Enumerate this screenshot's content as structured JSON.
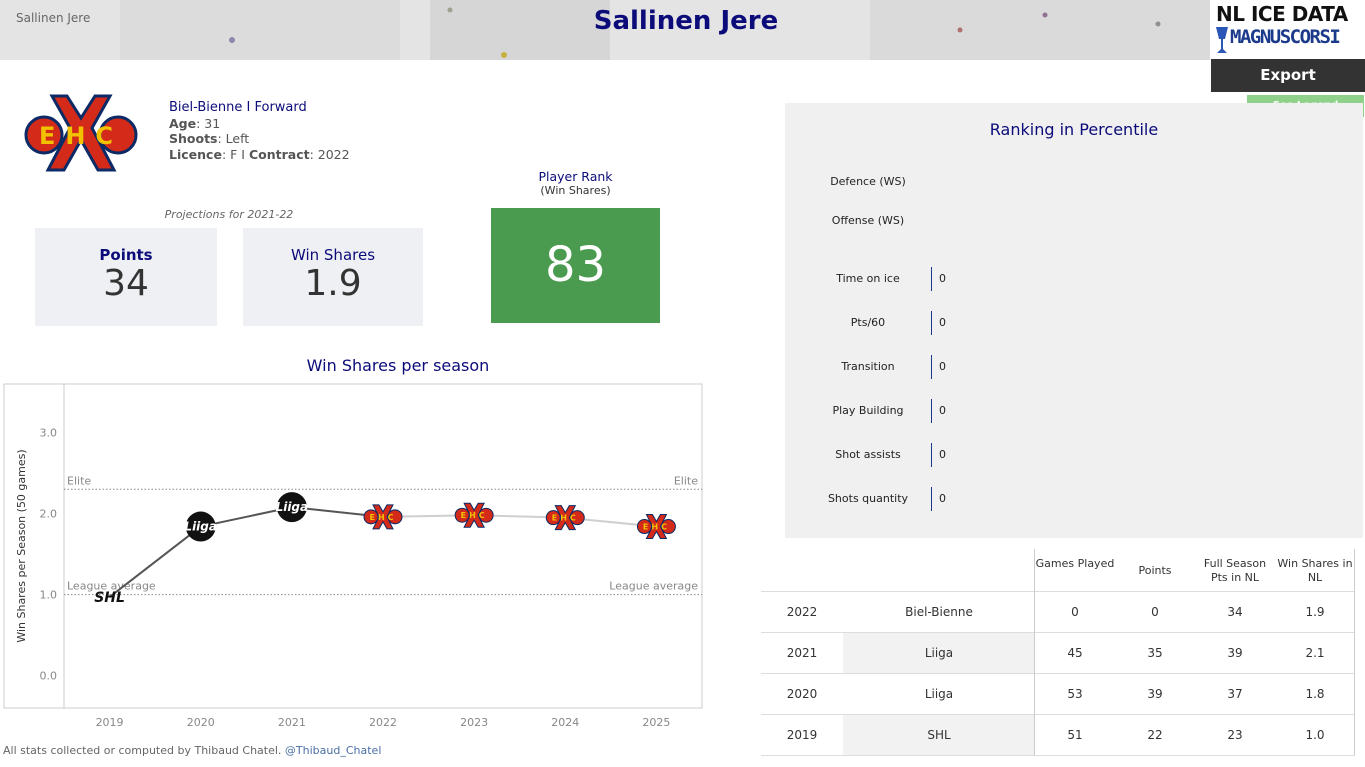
{
  "header": {
    "breadcrumb": "Sallinen Jere",
    "title": "Sallinen Jere",
    "brand_line1": "NL ICE DATA",
    "brand_line2": "MAGNUSCORSI",
    "export_label": "Export",
    "legend_label": "See Legend"
  },
  "player": {
    "team_position": "Biel-Bienne  I  Forward",
    "age_label": "Age",
    "age": ": 31",
    "shoots_label": "Shoots",
    "shoots": ": Left",
    "licence_label": "Licence",
    "licence": ": F I ",
    "contract_label": "Contract",
    "contract": ": 2022",
    "logo_text": "EHC"
  },
  "projections": {
    "title": "Projections for 2021-22",
    "points_label": "Points",
    "points_value": "34",
    "ws_label": "Win Shares",
    "ws_value": "1.9"
  },
  "rank": {
    "title": "Player Rank",
    "subtitle": "(Win Shares)",
    "value": "83",
    "color": "#4a9a4f"
  },
  "ws_chart_title": "Win Shares per season",
  "chart_data": {
    "type": "line",
    "title": "Win Shares per season",
    "ylabel": "Win Shares per Season (50 games)",
    "xlabel": "",
    "x": [
      "2019",
      "2020",
      "2021",
      "2022",
      "2023",
      "2024",
      "2025"
    ],
    "series": [
      {
        "values": [
          0.97,
          1.84,
          2.08,
          1.96,
          1.98,
          1.95,
          1.84
        ]
      }
    ],
    "point_logos": [
      "SHL",
      "Liiga",
      "Liiga",
      "EHC",
      "EHC",
      "EHC",
      "EHC"
    ],
    "yticks": [
      "0.0",
      "1.0",
      "2.0",
      "3.0"
    ],
    "ylim": [
      -0.4,
      3.6
    ],
    "reference_lines": [
      {
        "label_left": "Elite",
        "label_right": "Elite",
        "value": 2.3
      },
      {
        "label_left": "League average",
        "label_right": "League average",
        "value": 1.0
      }
    ],
    "line_color": "#555555"
  },
  "percentile": {
    "title": "Ranking in Percentile",
    "rows": [
      {
        "label": "Defence (WS)",
        "value": ""
      },
      {
        "label": "Offense (WS)",
        "value": ""
      },
      {
        "label": "Time on ice",
        "value": "0"
      },
      {
        "label": "Pts/60",
        "value": "0"
      },
      {
        "label": "Transition",
        "value": "0"
      },
      {
        "label": "Play Building",
        "value": "0"
      },
      {
        "label": "Shot assists",
        "value": "0"
      },
      {
        "label": "Shots quantity",
        "value": "0"
      }
    ]
  },
  "table": {
    "headers": [
      "Games Played",
      "Points",
      "Full Season Pts in NL",
      "Win Shares in NL"
    ],
    "rows": [
      {
        "year": "2022",
        "league": "Biel-Bienne",
        "gp": "0",
        "pts": "0",
        "full": "34",
        "ws": "1.9"
      },
      {
        "year": "2021",
        "league": "Liiga",
        "gp": "45",
        "pts": "35",
        "full": "39",
        "ws": "2.1"
      },
      {
        "year": "2020",
        "league": "Liiga",
        "gp": "53",
        "pts": "39",
        "full": "37",
        "ws": "1.8"
      },
      {
        "year": "2019",
        "league": "SHL",
        "gp": "51",
        "pts": "22",
        "full": "23",
        "ws": "1.0"
      }
    ]
  },
  "footer": {
    "text": "All stats collected or computed by Thibaud Chatel. ",
    "handle": "@Thibaud_Chatel"
  }
}
